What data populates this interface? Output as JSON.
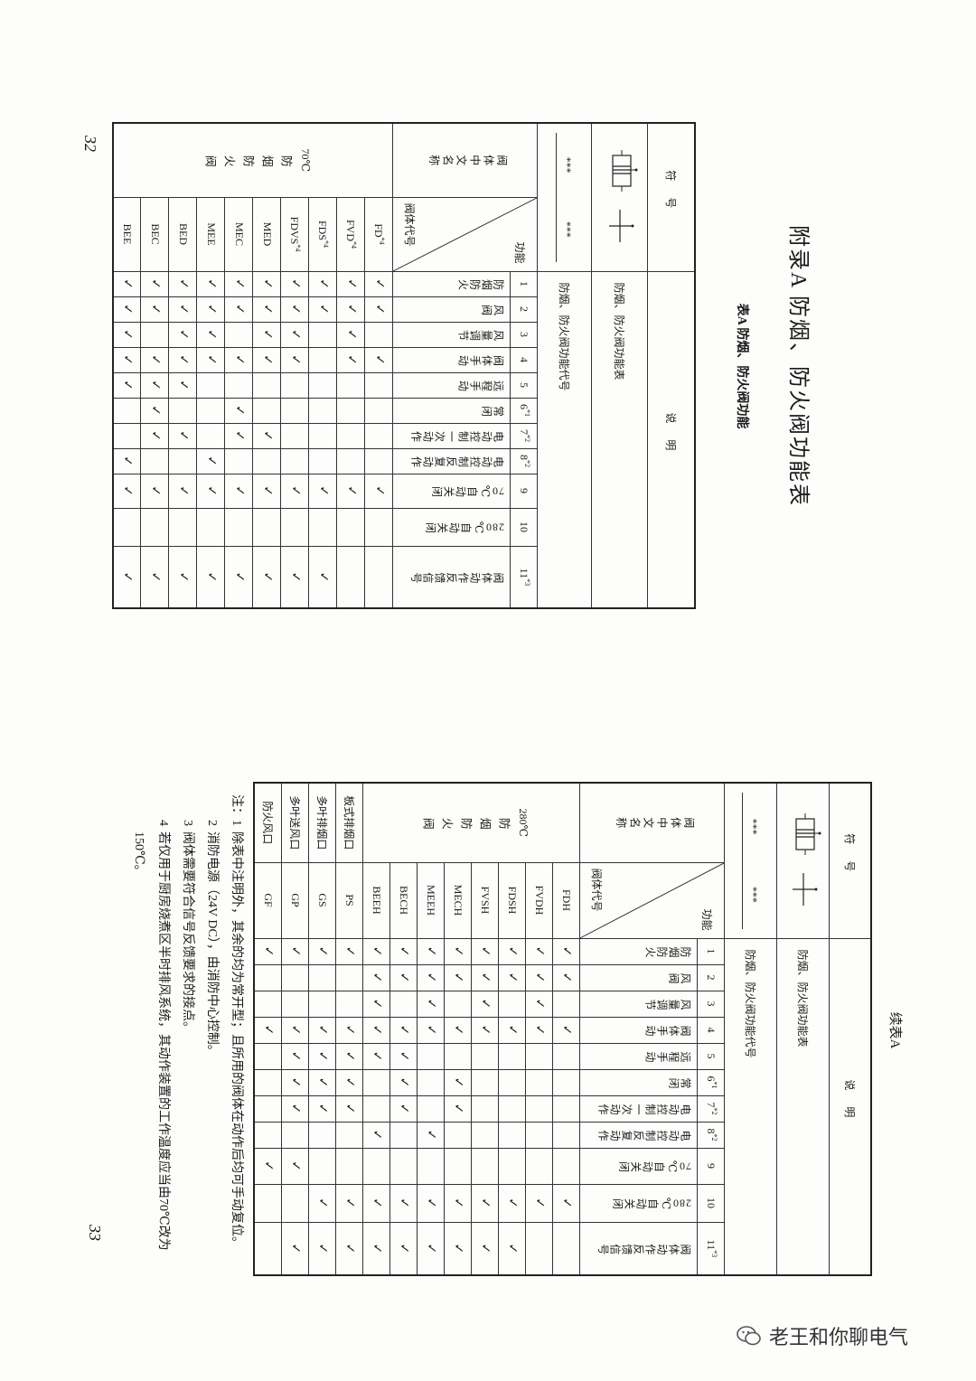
{
  "check_mark": "✓",
  "functions": [
    {
      "num": "1",
      "note": "",
      "label": "防烟防火"
    },
    {
      "num": "2",
      "note": "",
      "label": "风阀"
    },
    {
      "num": "3",
      "note": "",
      "label": "风量调节"
    },
    {
      "num": "4",
      "note": "",
      "label": "阀体手动"
    },
    {
      "num": "5",
      "note": "",
      "label": "远程手动"
    },
    {
      "num": "6",
      "note": "*1",
      "label": "常闭"
    },
    {
      "num": "7",
      "note": "*2",
      "label": "电动控制一次动作"
    },
    {
      "num": "8",
      "note": "*2",
      "label": "电动控制反复动作"
    },
    {
      "num": "9",
      "note": "",
      "label": "70℃自动关闭"
    },
    {
      "num": "10",
      "note": "",
      "label": "280℃自动关闭"
    },
    {
      "num": "11",
      "note": "*3",
      "label": "阀体动作反馈信号"
    }
  ],
  "pageA": {
    "title": "附录A  防烟、防火阀功能表",
    "subtitle": "表A  防烟、防火阀功能",
    "page_number": "32"
  },
  "pageB": {
    "continued": "续表A",
    "page_number": "33",
    "notes_prefix": "注：",
    "notes": [
      {
        "k": "1",
        "text": "除表中注明外，其余的均为常开型；且所用的阀体在动作后均可手动复位。"
      },
      {
        "k": "2",
        "text": "消防电源（24V DC），由消防中心控制。"
      },
      {
        "k": "3",
        "text": "阀体需要符合信号反馈要求的接点。"
      },
      {
        "k": "4",
        "text": "若仅用于厨房烧煮区半时排风系统，其动作装置的工作温度应当由70℃改为150℃。"
      }
    ]
  },
  "tableA": {
    "header_symbol": "符号",
    "header_desc": "说明",
    "desc_row1": "防烟、防火阀功能表",
    "stars_left": "***",
    "stars_right": "***",
    "desc_row2": "防烟、防火阀功能代号",
    "name_header": "阀体中文名称",
    "diag_top": "功能",
    "diag_bottom": "阀体代号",
    "groups": [
      {
        "temp": "70℃",
        "name": "防烟防火阀",
        "rows": [
          {
            "code": "FD",
            "note": "*4",
            "checks": [
              1,
              2,
              4,
              9
            ]
          },
          {
            "code": "FVD",
            "note": "*4",
            "checks": [
              1,
              2,
              3,
              4,
              9
            ]
          },
          {
            "code": "FDS",
            "note": "*4",
            "checks": [
              1,
              2,
              9,
              11
            ]
          },
          {
            "code": "FDVS",
            "note": "*4",
            "checks": [
              1,
              2,
              3,
              4,
              9,
              11
            ]
          },
          {
            "code": "MED",
            "note": "",
            "checks": [
              1,
              2,
              3,
              4,
              7,
              9,
              11
            ]
          },
          {
            "code": "MEC",
            "note": "",
            "checks": [
              1,
              2,
              4,
              6,
              7,
              9,
              11
            ]
          },
          {
            "code": "MEE",
            "note": "",
            "checks": [
              1,
              2,
              3,
              4,
              8,
              9,
              11
            ]
          },
          {
            "code": "BED",
            "note": "",
            "checks": [
              1,
              2,
              3,
              4,
              5,
              7,
              9,
              11
            ]
          },
          {
            "code": "BEC",
            "note": "",
            "checks": [
              1,
              2,
              4,
              5,
              6,
              7,
              9,
              11
            ]
          },
          {
            "code": "BEE",
            "note": "",
            "checks": [
              1,
              2,
              3,
              4,
              5,
              8,
              9,
              11
            ]
          }
        ]
      }
    ]
  },
  "tableB": {
    "header_symbol": "符号",
    "header_desc": "说明",
    "desc_row1": "防烟、防火阀功能表",
    "stars_left": "***",
    "stars_right": "***",
    "desc_row2": "防烟、防火阀功能代号",
    "name_header": "阀体中文名称",
    "diag_top": "功能",
    "diag_bottom": "阀体代号",
    "groups": [
      {
        "temp": "280℃",
        "name": "防烟防火阀",
        "rows": [
          {
            "code": "FDH",
            "note": "",
            "checks": [
              1,
              2,
              4,
              10
            ]
          },
          {
            "code": "FVDH",
            "note": "",
            "checks": [
              1,
              2,
              3,
              4,
              10
            ]
          },
          {
            "code": "FDSH",
            "note": "",
            "checks": [
              1,
              2,
              4,
              10,
              11
            ]
          },
          {
            "code": "FVSH",
            "note": "",
            "checks": [
              1,
              2,
              3,
              4,
              10,
              11
            ]
          },
          {
            "code": "MECH",
            "note": "",
            "checks": [
              1,
              2,
              4,
              6,
              7,
              10,
              11
            ]
          },
          {
            "code": "MEEH",
            "note": "",
            "checks": [
              1,
              2,
              3,
              4,
              8,
              10,
              11
            ]
          },
          {
            "code": "BECH",
            "note": "",
            "checks": [
              1,
              2,
              4,
              5,
              6,
              7,
              10,
              11
            ]
          },
          {
            "code": "BEEH",
            "note": "",
            "checks": [
              1,
              2,
              3,
              4,
              5,
              8,
              10,
              11
            ]
          }
        ]
      },
      {
        "label": "板式排烟口",
        "rows": [
          {
            "code": "PS",
            "note": "",
            "checks": [
              1,
              4,
              5,
              6,
              7,
              10,
              11
            ]
          }
        ]
      },
      {
        "label": "多叶排烟口",
        "rows": [
          {
            "code": "GS",
            "note": "",
            "checks": [
              1,
              4,
              5,
              6,
              7,
              10,
              11
            ]
          }
        ]
      },
      {
        "label": "多叶送风口",
        "rows": [
          {
            "code": "GP",
            "note": "",
            "checks": [
              1,
              4,
              5,
              6,
              7,
              9,
              11
            ]
          }
        ]
      },
      {
        "label": "防火风口",
        "rows": [
          {
            "code": "GF",
            "note": "",
            "checks": [
              1,
              4,
              9
            ]
          }
        ]
      }
    ]
  },
  "watermark": {
    "text": "老王和你聊电气",
    "icon": "wechat-icon",
    "color": "#333333"
  }
}
